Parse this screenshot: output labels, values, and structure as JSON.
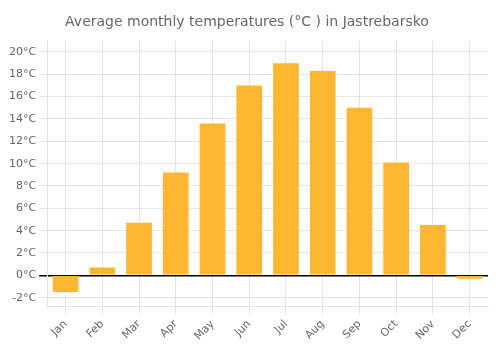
{
  "chart_data": {
    "type": "bar",
    "title": "Average monthly temperatures (°C ) in Jastrebarsko",
    "categories": [
      "Jan",
      "Feb",
      "Mar",
      "Apr",
      "May",
      "Jun",
      "Jul",
      "Aug",
      "Sep",
      "Oct",
      "Nov",
      "Dec"
    ],
    "values": [
      -1.5,
      0.7,
      4.7,
      9.2,
      13.6,
      17.0,
      19.0,
      18.3,
      15.0,
      10.1,
      4.5,
      -0.3
    ],
    "color": "#FFB733",
    "ylim": [
      -2.8,
      21.0
    ],
    "yticks": [
      {
        "value": -2,
        "label": "-2°C"
      },
      {
        "value": 0,
        "label": "0°C"
      },
      {
        "value": 2,
        "label": "2°C"
      },
      {
        "value": 4,
        "label": "4°C"
      },
      {
        "value": 6,
        "label": "6°C"
      },
      {
        "value": 8,
        "label": "8°C"
      },
      {
        "value": 10,
        "label": "10°C"
      },
      {
        "value": 12,
        "label": "12°C"
      },
      {
        "value": 14,
        "label": "14°C"
      },
      {
        "value": 16,
        "label": "16°C"
      },
      {
        "value": 18,
        "label": "18°C"
      },
      {
        "value": 20,
        "label": "20°C"
      }
    ],
    "grid": true
  }
}
